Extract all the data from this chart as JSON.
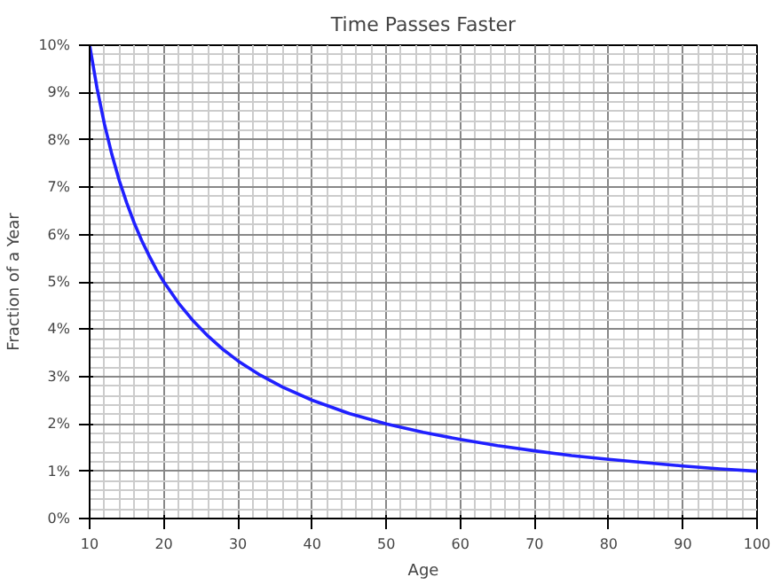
{
  "chart_data": {
    "type": "line",
    "title": "Time Passes Faster",
    "xlabel": "Age",
    "ylabel": "Fraction of a Year",
    "x": [
      10,
      11,
      12,
      13,
      14,
      15,
      16,
      17,
      18,
      19,
      20,
      22,
      24,
      26,
      28,
      30,
      33,
      36,
      40,
      45,
      50,
      55,
      60,
      65,
      70,
      75,
      80,
      85,
      90,
      95,
      100
    ],
    "series": [
      {
        "color": "#2020ff",
        "values": [
          10.0,
          9.09,
          8.33,
          7.69,
          7.14,
          6.67,
          6.25,
          5.88,
          5.56,
          5.26,
          5.0,
          4.55,
          4.17,
          3.85,
          3.57,
          3.33,
          3.03,
          2.78,
          2.5,
          2.22,
          2.0,
          1.82,
          1.67,
          1.54,
          1.43,
          1.33,
          1.25,
          1.18,
          1.11,
          1.05,
          1.0
        ]
      }
    ],
    "xlim": [
      10,
      100
    ],
    "xticks": [
      10,
      20,
      30,
      40,
      50,
      60,
      70,
      80,
      90,
      100
    ],
    "ylim": [
      0,
      10
    ],
    "yticks": [
      {
        "value": 0,
        "label": "0%"
      },
      {
        "value": 1,
        "label": "1%"
      },
      {
        "value": 2,
        "label": "2%"
      },
      {
        "value": 3,
        "label": "3%"
      },
      {
        "value": 4,
        "label": "4%"
      },
      {
        "value": 5,
        "label": "5%"
      },
      {
        "value": 6,
        "label": "6%"
      },
      {
        "value": 7,
        "label": "7%"
      },
      {
        "value": 8,
        "label": "8%"
      },
      {
        "value": 9,
        "label": "9%"
      },
      {
        "value": 10,
        "label": "10%"
      }
    ],
    "grid": true,
    "marker": "none",
    "line_style": "solid"
  }
}
